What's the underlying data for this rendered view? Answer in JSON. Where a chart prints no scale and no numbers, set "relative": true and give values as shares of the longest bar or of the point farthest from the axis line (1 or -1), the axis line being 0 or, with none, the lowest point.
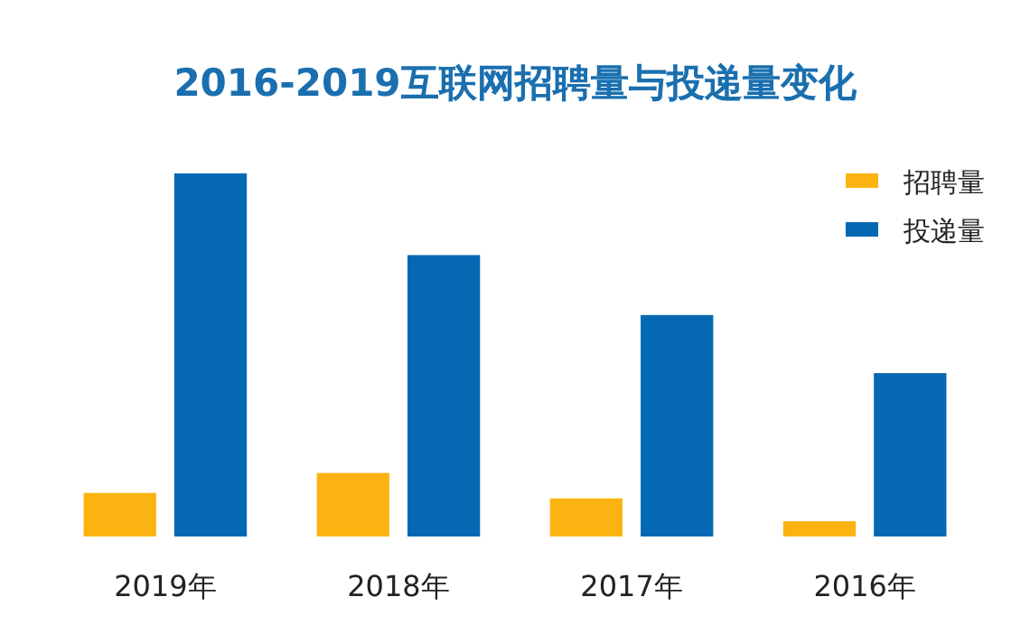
{
  "chart_data": {
    "type": "bar",
    "title": "2016-2019互联网招聘量与投递量变化",
    "categories": [
      "2019年",
      "2018年",
      "2017年",
      "2016年"
    ],
    "relative": true,
    "legend": "top right",
    "series": [
      {
        "name": "招聘量",
        "color": "#fbb311",
        "values": [
          0.12,
          0.175,
          0.105,
          0.042
        ]
      },
      {
        "name": "投递量",
        "color": "#0568b3",
        "values": [
          1,
          0.775,
          0.61,
          0.45
        ]
      }
    ]
  }
}
